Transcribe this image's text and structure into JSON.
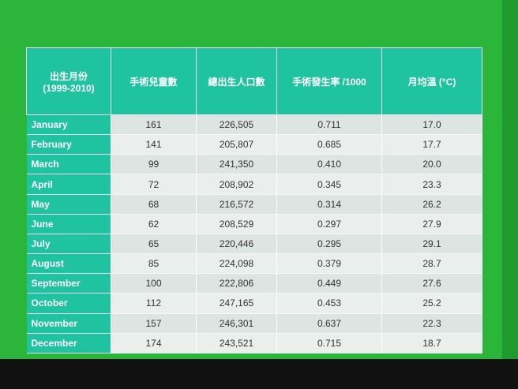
{
  "table": {
    "header": [
      "出生月份\n(1999-2010)",
      "手術兒童數",
      "總出生人口數",
      "手術發生率 /1000",
      "月均溫 (°C)"
    ],
    "rows": [
      [
        "January",
        "161",
        "226,505",
        "0.711",
        "17.0"
      ],
      [
        "February",
        "141",
        "205,807",
        "0.685",
        "17.7"
      ],
      [
        "March",
        "99",
        "241,350",
        "0.410",
        "20.0"
      ],
      [
        "April",
        "72",
        "208,902",
        "0.345",
        "23.3"
      ],
      [
        "May",
        "68",
        "216,572",
        "0.314",
        "26.2"
      ],
      [
        "June",
        "62",
        "208,529",
        "0.297",
        "27.9"
      ],
      [
        "July",
        "65",
        "220,446",
        "0.295",
        "29.1"
      ],
      [
        "August",
        "85",
        "224,098",
        "0.379",
        "28.7"
      ],
      [
        "September",
        "100",
        "222,806",
        "0.449",
        "27.6"
      ],
      [
        "October",
        "112",
        "247,165",
        "0.453",
        "25.2"
      ],
      [
        "November",
        "157",
        "246,301",
        "0.637",
        "22.3"
      ],
      [
        "December",
        "174",
        "243,521",
        "0.715",
        "18.7"
      ]
    ]
  }
}
